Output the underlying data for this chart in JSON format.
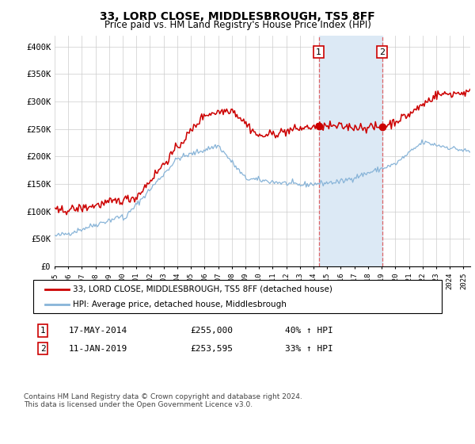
{
  "title": "33, LORD CLOSE, MIDDLESBROUGH, TS5 8FF",
  "subtitle": "Price paid vs. HM Land Registry's House Price Index (HPI)",
  "ylim": [
    0,
    420000
  ],
  "yticks": [
    0,
    50000,
    100000,
    150000,
    200000,
    250000,
    300000,
    350000,
    400000
  ],
  "ytick_labels": [
    "£0",
    "£50K",
    "£100K",
    "£150K",
    "£200K",
    "£250K",
    "£300K",
    "£350K",
    "£400K"
  ],
  "sale1_date": "17-MAY-2014",
  "sale1_price": 255000,
  "sale1_pct": "40%",
  "sale2_date": "11-JAN-2019",
  "sale2_price": 253595,
  "sale2_pct": "33%",
  "legend_property": "33, LORD CLOSE, MIDDLESBROUGH, TS5 8FF (detached house)",
  "legend_hpi": "HPI: Average price, detached house, Middlesbrough",
  "footnote": "Contains HM Land Registry data © Crown copyright and database right 2024.\nThis data is licensed under the Open Government Licence v3.0.",
  "property_color": "#cc0000",
  "hpi_color": "#88b4d8",
  "highlight_fill": "#dce9f5",
  "grid_color": "#cccccc",
  "bg_color": "#ffffff"
}
